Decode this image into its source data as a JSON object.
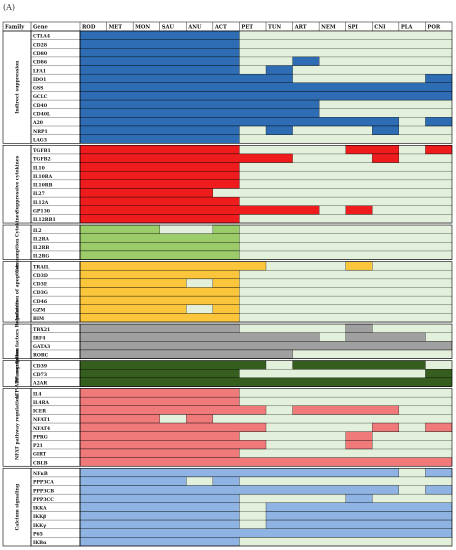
{
  "panel_label": "(A)",
  "headers": {
    "family": "Family",
    "gene": "Gene"
  },
  "species": [
    "ROD",
    "MET",
    "MON",
    "SAU",
    "ANU",
    "ACT",
    "PET",
    "TUN",
    "ART",
    "NEM",
    "SPI",
    "CNI",
    "PLA",
    "POR"
  ],
  "background_color": "#e3f0dc",
  "families": [
    {
      "name": "Indirect suppression",
      "color": "#2e6db4",
      "genes": [
        {
          "name": "CTLA4",
          "present": [
            1,
            1,
            1,
            1,
            1,
            1,
            0,
            0,
            0,
            0,
            0,
            0,
            0,
            0
          ]
        },
        {
          "name": "CD28",
          "present": [
            1,
            1,
            1,
            1,
            1,
            1,
            0,
            0,
            0,
            0,
            0,
            0,
            0,
            0
          ]
        },
        {
          "name": "CD80",
          "present": [
            1,
            1,
            1,
            1,
            1,
            1,
            0,
            0,
            0,
            0,
            0,
            0,
            0,
            0
          ]
        },
        {
          "name": "CD86",
          "present": [
            1,
            1,
            1,
            1,
            1,
            1,
            0,
            0,
            1,
            0,
            0,
            0,
            0,
            0
          ]
        },
        {
          "name": "LFA1",
          "present": [
            1,
            1,
            1,
            1,
            1,
            1,
            0,
            1,
            0,
            0,
            0,
            0,
            0,
            0
          ]
        },
        {
          "name": "IDO1",
          "present": [
            1,
            1,
            1,
            1,
            1,
            1,
            1,
            1,
            0,
            0,
            0,
            0,
            0,
            1
          ]
        },
        {
          "name": "GSS",
          "present": [
            1,
            1,
            1,
            1,
            1,
            1,
            1,
            1,
            1,
            1,
            1,
            1,
            1,
            1
          ]
        },
        {
          "name": "GCLC",
          "present": [
            1,
            1,
            1,
            1,
            1,
            1,
            1,
            1,
            1,
            1,
            1,
            1,
            1,
            1
          ]
        },
        {
          "name": "CD40",
          "present": [
            1,
            1,
            1,
            1,
            1,
            1,
            1,
            1,
            1,
            0,
            0,
            0,
            0,
            0
          ]
        },
        {
          "name": "CD40L",
          "present": [
            1,
            1,
            1,
            1,
            1,
            1,
            1,
            1,
            1,
            0,
            0,
            0,
            0,
            0
          ]
        },
        {
          "name": "A20",
          "present": [
            1,
            1,
            1,
            1,
            1,
            1,
            1,
            1,
            1,
            1,
            1,
            1,
            0,
            1
          ]
        },
        {
          "name": "NRP1",
          "present": [
            1,
            1,
            1,
            1,
            1,
            1,
            0,
            1,
            0,
            0,
            0,
            1,
            0,
            0
          ]
        },
        {
          "name": "LAG3",
          "present": [
            1,
            1,
            1,
            1,
            1,
            1,
            0,
            0,
            0,
            0,
            0,
            0,
            0,
            0
          ]
        }
      ]
    },
    {
      "name": "Suppressive cytokines",
      "color": "#ee1c1c",
      "genes": [
        {
          "name": "TGFB1",
          "present": [
            1,
            1,
            1,
            1,
            1,
            1,
            0,
            0,
            0,
            0,
            1,
            1,
            0,
            1
          ]
        },
        {
          "name": "TGFB2",
          "present": [
            1,
            1,
            1,
            1,
            1,
            1,
            1,
            1,
            0,
            0,
            0,
            1,
            0,
            0
          ]
        },
        {
          "name": "IL10",
          "present": [
            1,
            1,
            1,
            1,
            1,
            1,
            0,
            0,
            0,
            0,
            0,
            0,
            0,
            0
          ]
        },
        {
          "name": "IL10RA",
          "present": [
            1,
            1,
            1,
            1,
            1,
            1,
            0,
            0,
            0,
            0,
            0,
            0,
            0,
            0
          ]
        },
        {
          "name": "IL10RB",
          "present": [
            1,
            1,
            1,
            1,
            1,
            1,
            0,
            0,
            0,
            0,
            0,
            0,
            0,
            0
          ]
        },
        {
          "name": "IL27",
          "present": [
            1,
            1,
            1,
            1,
            1,
            0,
            0,
            0,
            0,
            0,
            0,
            0,
            0,
            0
          ]
        },
        {
          "name": "IL12A",
          "present": [
            1,
            1,
            1,
            1,
            1,
            1,
            0,
            0,
            0,
            0,
            0,
            0,
            0,
            0
          ]
        },
        {
          "name": "GP130",
          "present": [
            1,
            1,
            1,
            1,
            1,
            1,
            1,
            1,
            1,
            0,
            1,
            0,
            0,
            0
          ]
        },
        {
          "name": "IL12RB1",
          "present": [
            1,
            1,
            1,
            1,
            1,
            1,
            0,
            0,
            0,
            0,
            0,
            0,
            0,
            0
          ]
        }
      ]
    },
    {
      "name": "Consumption Cytokines",
      "color": "#9ccc6a",
      "genes": [
        {
          "name": "IL2",
          "present": [
            1,
            1,
            1,
            0,
            0,
            1,
            0,
            0,
            0,
            0,
            0,
            0,
            0,
            0
          ]
        },
        {
          "name": "IL2RA",
          "present": [
            1,
            1,
            1,
            1,
            1,
            1,
            0,
            0,
            0,
            0,
            0,
            0,
            0,
            0
          ]
        },
        {
          "name": "IL2RB",
          "present": [
            1,
            1,
            1,
            1,
            1,
            1,
            0,
            0,
            0,
            0,
            0,
            0,
            0,
            0
          ]
        },
        {
          "name": "IL2RG",
          "present": [
            1,
            1,
            1,
            1,
            1,
            1,
            0,
            0,
            0,
            0,
            0,
            0,
            0,
            0
          ]
        }
      ]
    },
    {
      "name": "Induction of apoptosis",
      "color": "#fbc63b",
      "genes": [
        {
          "name": "TRAIL",
          "present": [
            1,
            1,
            1,
            1,
            1,
            1,
            1,
            0,
            0,
            0,
            1,
            0,
            0,
            0
          ]
        },
        {
          "name": "CD3D",
          "present": [
            1,
            1,
            1,
            1,
            1,
            1,
            0,
            0,
            0,
            0,
            0,
            0,
            0,
            0
          ]
        },
        {
          "name": "CD3E",
          "present": [
            1,
            1,
            1,
            1,
            0,
            1,
            0,
            0,
            0,
            0,
            0,
            0,
            0,
            0
          ]
        },
        {
          "name": "CD3G",
          "present": [
            1,
            1,
            1,
            1,
            1,
            1,
            0,
            0,
            0,
            0,
            0,
            0,
            0,
            0
          ]
        },
        {
          "name": "CD46",
          "present": [
            1,
            1,
            1,
            1,
            1,
            1,
            0,
            0,
            0,
            0,
            0,
            0,
            0,
            0
          ]
        },
        {
          "name": "GZM",
          "present": [
            1,
            1,
            1,
            1,
            0,
            1,
            0,
            0,
            0,
            0,
            0,
            0,
            0,
            0
          ]
        },
        {
          "name": "BIM",
          "present": [
            1,
            1,
            1,
            1,
            1,
            1,
            0,
            0,
            0,
            0,
            0,
            0,
            0,
            0
          ]
        }
      ]
    },
    {
      "name": "Transcription factors Regulators",
      "color": "#a0a0a0",
      "genes": [
        {
          "name": "TBX21",
          "present": [
            1,
            1,
            1,
            1,
            1,
            1,
            0,
            0,
            0,
            0,
            1,
            0,
            0,
            0
          ]
        },
        {
          "name": "IRF4",
          "present": [
            1,
            1,
            1,
            1,
            1,
            1,
            1,
            1,
            1,
            0,
            1,
            1,
            1,
            0
          ]
        },
        {
          "name": "GATA3",
          "present": [
            1,
            1,
            1,
            1,
            1,
            1,
            1,
            1,
            1,
            1,
            1,
            1,
            1,
            1
          ]
        },
        {
          "name": "RORC",
          "present": [
            1,
            1,
            1,
            1,
            1,
            1,
            1,
            1,
            0,
            0,
            0,
            0,
            0,
            0
          ]
        }
      ]
    },
    {
      "name": "ATP-ADP regulation",
      "color": "#355e1f",
      "genes": [
        {
          "name": "CD39",
          "present": [
            1,
            1,
            1,
            1,
            1,
            1,
            1,
            0,
            1,
            1,
            1,
            1,
            1,
            0
          ]
        },
        {
          "name": "CD73",
          "present": [
            1,
            1,
            1,
            1,
            1,
            1,
            0,
            0,
            0,
            0,
            0,
            0,
            0,
            1
          ]
        },
        {
          "name": "A2AR",
          "present": [
            1,
            1,
            1,
            1,
            1,
            1,
            1,
            1,
            1,
            1,
            1,
            1,
            1,
            1
          ]
        }
      ]
    },
    {
      "name": "NFAT pathway regulation",
      "color": "#f07a7a",
      "genes": [
        {
          "name": "IL4",
          "present": [
            1,
            1,
            1,
            1,
            1,
            1,
            0,
            0,
            0,
            0,
            0,
            0,
            0,
            0
          ]
        },
        {
          "name": "IL4RA",
          "present": [
            1,
            1,
            1,
            1,
            1,
            1,
            0,
            0,
            0,
            0,
            0,
            0,
            0,
            0
          ]
        },
        {
          "name": "ICER",
          "present": [
            1,
            1,
            1,
            1,
            1,
            1,
            1,
            0,
            1,
            1,
            1,
            1,
            0,
            0
          ]
        },
        {
          "name": "NFAT1",
          "present": [
            1,
            1,
            1,
            0,
            1,
            0,
            0,
            0,
            0,
            0,
            0,
            0,
            0,
            0
          ]
        },
        {
          "name": "NFAT4",
          "present": [
            1,
            1,
            1,
            1,
            1,
            1,
            1,
            0,
            0,
            0,
            0,
            1,
            0,
            1
          ]
        },
        {
          "name": "PPRG",
          "present": [
            1,
            1,
            1,
            1,
            1,
            1,
            0,
            0,
            0,
            0,
            1,
            0,
            0,
            0
          ]
        },
        {
          "name": "P21",
          "present": [
            1,
            1,
            1,
            1,
            1,
            1,
            1,
            0,
            0,
            0,
            1,
            0,
            0,
            0
          ]
        },
        {
          "name": "GIRT",
          "present": [
            1,
            1,
            1,
            1,
            1,
            1,
            0,
            0,
            0,
            0,
            0,
            0,
            0,
            0
          ]
        },
        {
          "name": "CBLB",
          "present": [
            1,
            1,
            1,
            1,
            1,
            1,
            1,
            1,
            1,
            1,
            1,
            1,
            1,
            1
          ]
        }
      ]
    },
    {
      "name": "Calcium signaling",
      "color": "#8fb4e3",
      "genes": [
        {
          "name": "NFκB",
          "present": [
            1,
            1,
            1,
            1,
            1,
            1,
            1,
            1,
            1,
            1,
            1,
            1,
            0,
            1
          ]
        },
        {
          "name": "PPP3CA",
          "present": [
            1,
            1,
            1,
            1,
            0,
            1,
            0,
            0,
            0,
            0,
            0,
            0,
            0,
            0
          ]
        },
        {
          "name": "PPP3CB",
          "present": [
            1,
            1,
            1,
            1,
            1,
            1,
            1,
            1,
            1,
            1,
            1,
            1,
            0,
            1
          ]
        },
        {
          "name": "PPP3CC",
          "present": [
            1,
            1,
            1,
            1,
            1,
            1,
            0,
            0,
            0,
            0,
            1,
            0,
            0,
            0
          ]
        },
        {
          "name": "IKKA",
          "present": [
            1,
            1,
            1,
            1,
            1,
            1,
            0,
            1,
            1,
            1,
            1,
            1,
            1,
            1
          ]
        },
        {
          "name": "IKKβ",
          "present": [
            1,
            1,
            1,
            1,
            1,
            1,
            0,
            1,
            1,
            1,
            1,
            1,
            1,
            1
          ]
        },
        {
          "name": "IKKγ",
          "present": [
            1,
            1,
            1,
            1,
            1,
            1,
            0,
            1,
            1,
            1,
            1,
            1,
            1,
            1
          ]
        },
        {
          "name": "P65",
          "present": [
            1,
            1,
            1,
            1,
            1,
            1,
            1,
            1,
            1,
            1,
            1,
            1,
            1,
            1
          ]
        },
        {
          "name": "IKBα",
          "present": [
            1,
            1,
            1,
            1,
            1,
            1,
            0,
            0,
            0,
            0,
            0,
            0,
            0,
            0
          ]
        }
      ]
    }
  ]
}
